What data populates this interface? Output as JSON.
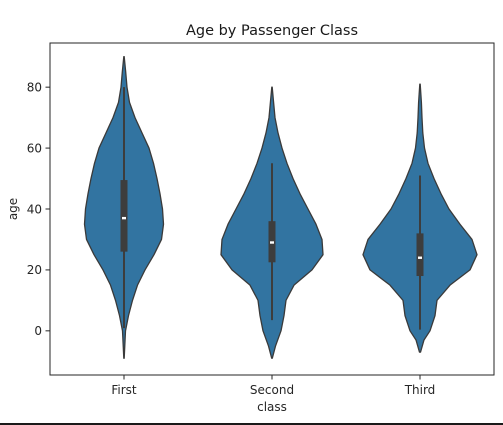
{
  "chart_data": {
    "type": "violin",
    "title": "Age by Passenger Class",
    "top_label": "class",
    "xlabel": "class",
    "ylabel": "age",
    "categories": [
      "First",
      "Second",
      "Third"
    ],
    "ylim": [
      -14.5,
      94.5
    ],
    "yticks": [
      0,
      20,
      40,
      60,
      80
    ],
    "grid": false,
    "color": "#3274a1",
    "edge_color": "#3a3a3a",
    "box_color": "#3d3d3d",
    "violins": [
      {
        "name": "First",
        "range": [
          -9,
          90
        ],
        "whiskers": [
          0.9,
          80
        ],
        "q1": 26,
        "median": 37,
        "q3": 49.5,
        "profile": [
          [
            -9,
            0.2
          ],
          [
            0,
            1.5
          ],
          [
            5,
            4.5
          ],
          [
            10,
            8.5
          ],
          [
            15,
            13.5
          ],
          [
            20,
            21
          ],
          [
            25,
            30
          ],
          [
            30,
            37.5
          ],
          [
            35,
            39.5
          ],
          [
            40,
            38.5
          ],
          [
            45,
            36
          ],
          [
            50,
            33
          ],
          [
            55,
            29.5
          ],
          [
            60,
            25
          ],
          [
            65,
            18
          ],
          [
            70,
            11
          ],
          [
            75,
            5.5
          ],
          [
            80,
            3
          ],
          [
            85,
            1.7
          ],
          [
            90,
            0.2
          ]
        ]
      },
      {
        "name": "Second",
        "range": [
          -9,
          80
        ],
        "whiskers": [
          3.5,
          55
        ],
        "q1": 22.5,
        "median": 29,
        "q3": 36,
        "profile": [
          [
            -9,
            0.3
          ],
          [
            -5,
            3.5
          ],
          [
            0,
            9
          ],
          [
            5,
            12
          ],
          [
            10,
            14
          ],
          [
            15,
            22
          ],
          [
            20,
            40
          ],
          [
            25,
            51
          ],
          [
            30,
            50
          ],
          [
            35,
            44
          ],
          [
            40,
            36
          ],
          [
            45,
            28
          ],
          [
            50,
            21
          ],
          [
            55,
            15
          ],
          [
            60,
            10
          ],
          [
            65,
            6
          ],
          [
            70,
            3
          ],
          [
            75,
            1.6
          ],
          [
            80,
            0.2
          ]
        ]
      },
      {
        "name": "Third",
        "range": [
          -7,
          81
        ],
        "whiskers": [
          0.4,
          51
        ],
        "q1": 18,
        "median": 24,
        "q3": 32,
        "profile": [
          [
            -7,
            0.5
          ],
          [
            -3,
            4
          ],
          [
            0,
            10
          ],
          [
            5,
            15
          ],
          [
            10,
            17
          ],
          [
            15,
            30
          ],
          [
            20,
            50
          ],
          [
            25,
            57
          ],
          [
            30,
            52
          ],
          [
            35,
            40
          ],
          [
            40,
            29
          ],
          [
            45,
            21
          ],
          [
            50,
            14
          ],
          [
            55,
            8
          ],
          [
            60,
            4.5
          ],
          [
            65,
            2.8
          ],
          [
            70,
            2
          ],
          [
            75,
            1.4
          ],
          [
            81,
            0.2
          ]
        ]
      }
    ]
  }
}
